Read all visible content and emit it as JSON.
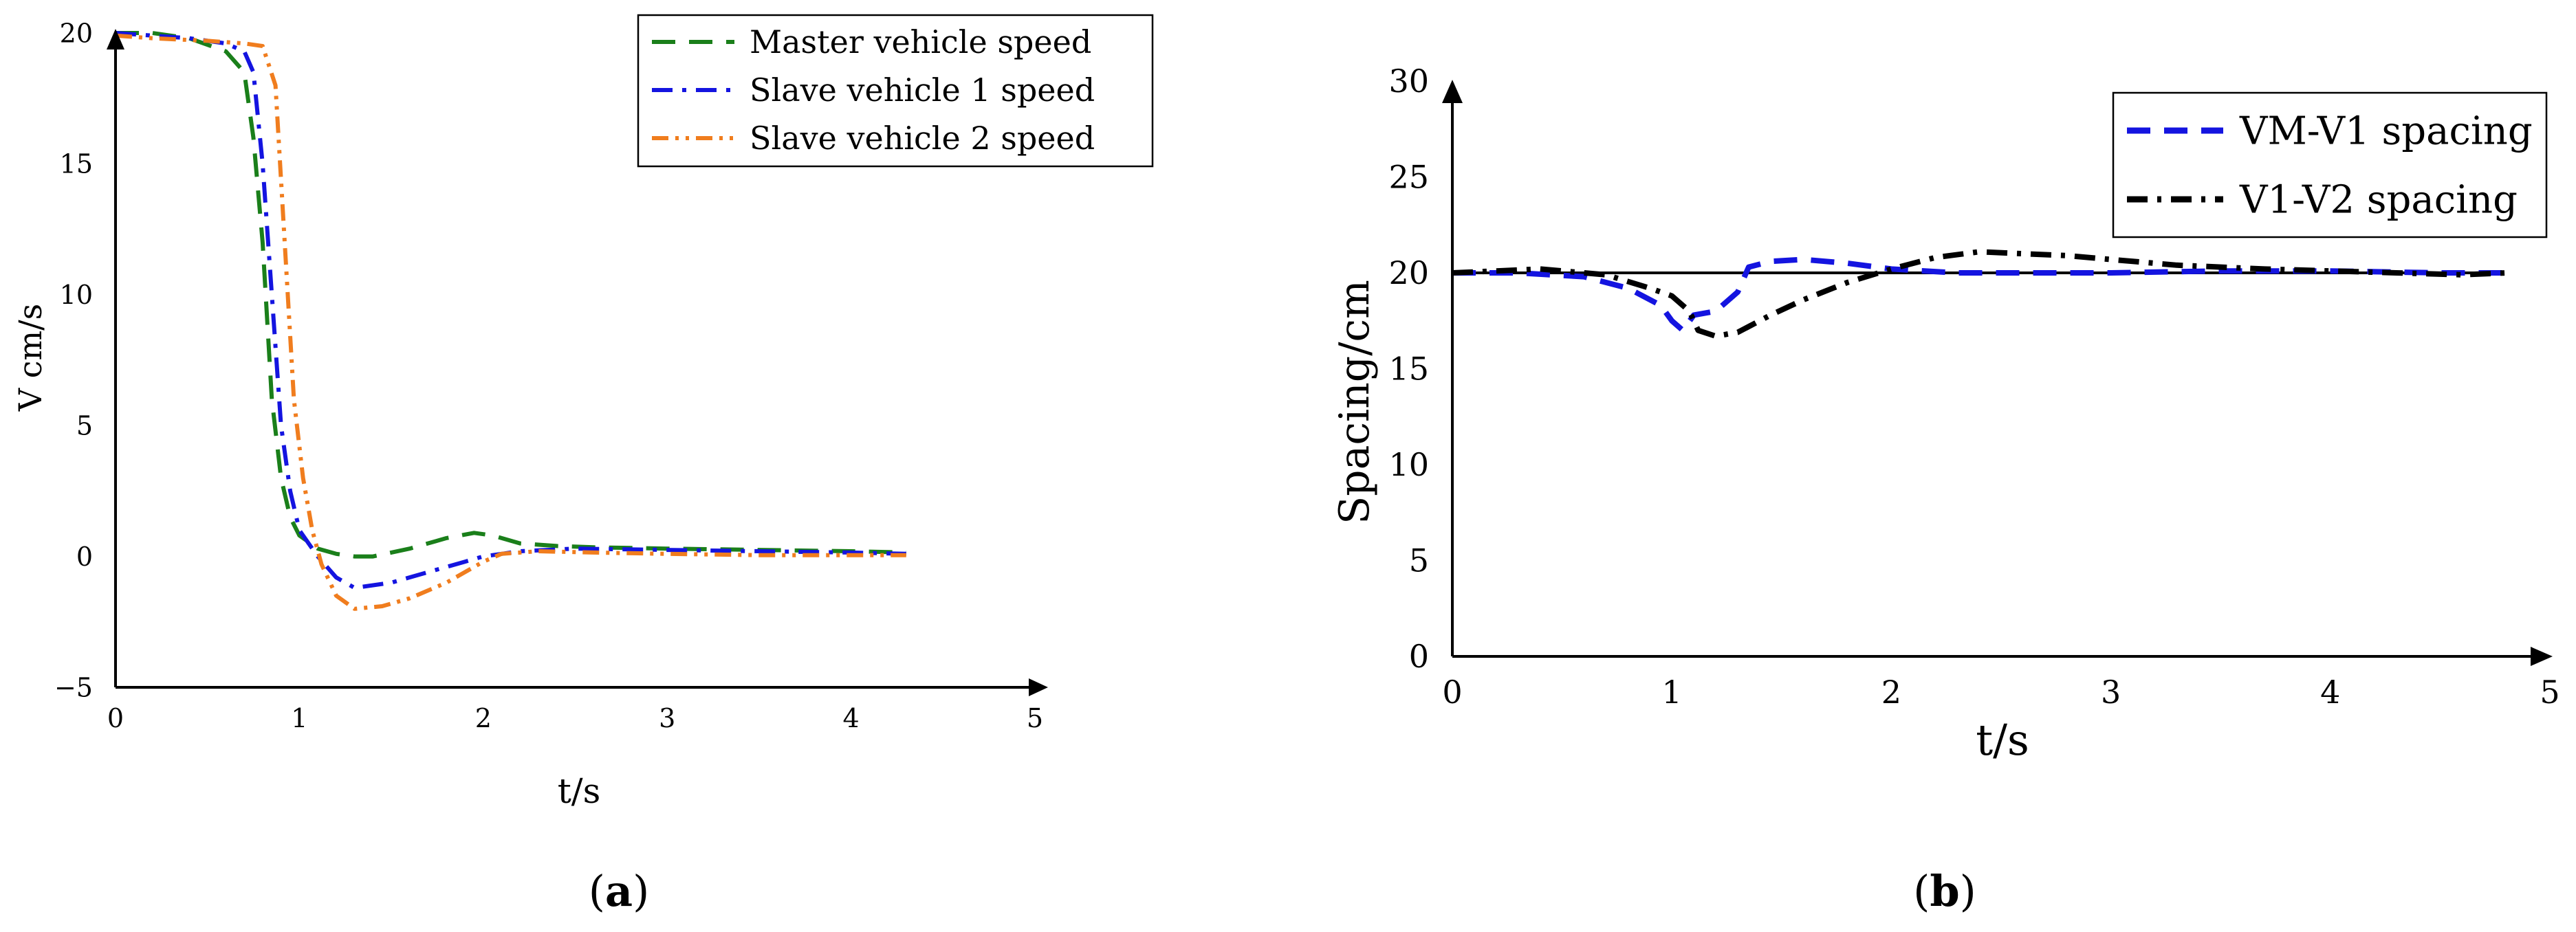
{
  "chart_data": [
    {
      "type": "line",
      "panel_label": "a",
      "xlabel": "t/s",
      "ylabel": "V cm/s",
      "xlim": [
        0,
        5
      ],
      "ylim": [
        -5,
        20
      ],
      "x_ticks": [
        0,
        1,
        2,
        3,
        4,
        5
      ],
      "y_ticks": [
        -5,
        0,
        5,
        10,
        15,
        20
      ],
      "grid": false,
      "legend_position": "top-right",
      "series": [
        {
          "name": "Master vehicle speed",
          "color": "#1a7f1a",
          "dash": "dashed",
          "points": [
            [
              0,
              20
            ],
            [
              0.2,
              20
            ],
            [
              0.4,
              19.8
            ],
            [
              0.6,
              19.3
            ],
            [
              0.7,
              18.5
            ],
            [
              0.75,
              16
            ],
            [
              0.8,
              12
            ],
            [
              0.85,
              6
            ],
            [
              0.9,
              3
            ],
            [
              0.95,
              1.5
            ],
            [
              1.0,
              0.8
            ],
            [
              1.1,
              0.3
            ],
            [
              1.2,
              0.1
            ],
            [
              1.3,
              0
            ],
            [
              1.4,
              0
            ],
            [
              1.6,
              0.3
            ],
            [
              1.8,
              0.7
            ],
            [
              1.95,
              0.9
            ],
            [
              2.05,
              0.8
            ],
            [
              2.2,
              0.5
            ],
            [
              2.4,
              0.4
            ],
            [
              2.6,
              0.35
            ],
            [
              3.0,
              0.3
            ],
            [
              3.5,
              0.25
            ],
            [
              4.0,
              0.2
            ],
            [
              4.3,
              0.15
            ]
          ]
        },
        {
          "name": "Slave vehicle 1 speed",
          "color": "#1414e0",
          "dash": "dashdot",
          "points": [
            [
              0,
              20
            ],
            [
              0.2,
              19.9
            ],
            [
              0.4,
              19.8
            ],
            [
              0.6,
              19.6
            ],
            [
              0.7,
              19.3
            ],
            [
              0.75,
              18.5
            ],
            [
              0.8,
              15
            ],
            [
              0.85,
              10
            ],
            [
              0.9,
              5
            ],
            [
              0.95,
              2.5
            ],
            [
              1.0,
              1.0
            ],
            [
              1.1,
              0
            ],
            [
              1.2,
              -0.8
            ],
            [
              1.3,
              -1.2
            ],
            [
              1.5,
              -1.0
            ],
            [
              1.7,
              -0.6
            ],
            [
              1.9,
              -0.2
            ],
            [
              2.0,
              0
            ],
            [
              2.2,
              0.2
            ],
            [
              2.5,
              0.3
            ],
            [
              3.0,
              0.25
            ],
            [
              3.5,
              0.2
            ],
            [
              4.0,
              0.15
            ],
            [
              4.3,
              0.1
            ]
          ]
        },
        {
          "name": "Slave vehicle 2 speed",
          "color": "#f07d1e",
          "dash": "dashdotdot",
          "points": [
            [
              0,
              19.9
            ],
            [
              0.2,
              19.8
            ],
            [
              0.5,
              19.7
            ],
            [
              0.7,
              19.6
            ],
            [
              0.8,
              19.5
            ],
            [
              0.87,
              18
            ],
            [
              0.92,
              12
            ],
            [
              0.97,
              6
            ],
            [
              1.02,
              3
            ],
            [
              1.07,
              1.0
            ],
            [
              1.12,
              -0.3
            ],
            [
              1.2,
              -1.5
            ],
            [
              1.3,
              -2.0
            ],
            [
              1.45,
              -1.9
            ],
            [
              1.6,
              -1.6
            ],
            [
              1.8,
              -1.0
            ],
            [
              2.0,
              -0.2
            ],
            [
              2.1,
              0.1
            ],
            [
              2.3,
              0.2
            ],
            [
              2.6,
              0.15
            ],
            [
              3.0,
              0.1
            ],
            [
              3.5,
              0.05
            ],
            [
              4.0,
              0.05
            ],
            [
              4.3,
              0.05
            ]
          ]
        }
      ]
    },
    {
      "type": "line",
      "panel_label": "b",
      "xlabel": "t/s",
      "ylabel": "Spacing/cm",
      "xlim": [
        0,
        5
      ],
      "ylim": [
        0,
        30
      ],
      "x_ticks": [
        0,
        1,
        2,
        3,
        4,
        5
      ],
      "y_ticks": [
        0,
        5,
        10,
        15,
        20,
        25,
        30
      ],
      "grid": false,
      "legend_position": "top-right",
      "reference_line_y": 20,
      "series": [
        {
          "name": "VM-V1 spacing",
          "color": "#1414e0",
          "dash": "dashed",
          "points": [
            [
              0,
              20
            ],
            [
              0.3,
              20
            ],
            [
              0.6,
              19.8
            ],
            [
              0.8,
              19.2
            ],
            [
              0.95,
              18.3
            ],
            [
              1.0,
              17.5
            ],
            [
              1.05,
              17.0
            ],
            [
              1.1,
              17.8
            ],
            [
              1.2,
              18.0
            ],
            [
              1.3,
              19.0
            ],
            [
              1.35,
              20.3
            ],
            [
              1.45,
              20.6
            ],
            [
              1.6,
              20.7
            ],
            [
              1.8,
              20.5
            ],
            [
              2.0,
              20.2
            ],
            [
              2.3,
              20.0
            ],
            [
              2.5,
              20.0
            ],
            [
              3.0,
              20.0
            ],
            [
              3.5,
              20.1
            ],
            [
              4.0,
              20.1
            ],
            [
              4.5,
              20.0
            ],
            [
              4.8,
              20.0
            ]
          ]
        },
        {
          "name": "V1-V2 spacing",
          "color": "#000000",
          "dash": "dashdot",
          "points": [
            [
              0,
              20
            ],
            [
              0.4,
              20.2
            ],
            [
              0.7,
              19.9
            ],
            [
              0.9,
              19.2
            ],
            [
              1.0,
              18.8
            ],
            [
              1.08,
              18.0
            ],
            [
              1.12,
              17.0
            ],
            [
              1.2,
              16.7
            ],
            [
              1.3,
              16.9
            ],
            [
              1.45,
              17.8
            ],
            [
              1.6,
              18.6
            ],
            [
              1.8,
              19.5
            ],
            [
              2.0,
              20.2
            ],
            [
              2.2,
              20.8
            ],
            [
              2.4,
              21.1
            ],
            [
              2.6,
              21.0
            ],
            [
              2.8,
              20.9
            ],
            [
              3.0,
              20.7
            ],
            [
              3.3,
              20.4
            ],
            [
              3.7,
              20.2
            ],
            [
              4.0,
              20.1
            ],
            [
              4.3,
              20.0
            ],
            [
              4.6,
              19.9
            ],
            [
              4.8,
              20.0
            ]
          ]
        }
      ]
    }
  ]
}
